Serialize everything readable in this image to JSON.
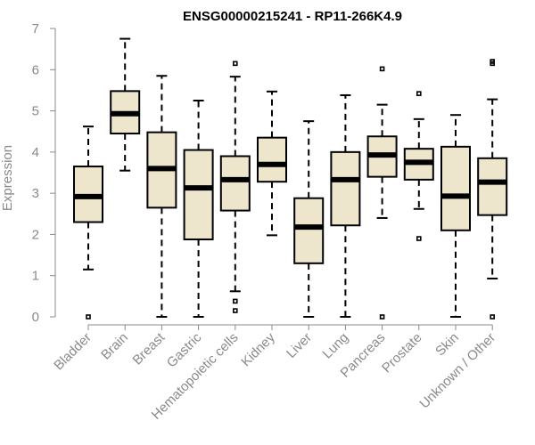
{
  "chart_data": {
    "type": "boxplot",
    "title": "ENSG00000215241 - RP11-266K4.9",
    "ylabel": "Expression",
    "xlabel": "",
    "ylim": [
      0,
      7
    ],
    "yticks": [
      0,
      1,
      2,
      3,
      4,
      5,
      6,
      7
    ],
    "box_fill": "#ede6cd",
    "categories": [
      "Bladder",
      "Brain",
      "Breast",
      "Gastric",
      "Hematopoietic cells",
      "Kidney",
      "Liver",
      "Lung",
      "Pancreas",
      "Prostate",
      "Skin",
      "Unknown / Other"
    ],
    "boxes": [
      {
        "name": "Bladder",
        "whisker_low": 1.15,
        "q1": 2.3,
        "median": 2.92,
        "q3": 3.65,
        "whisker_high": 4.62,
        "outliers": [
          0.0
        ]
      },
      {
        "name": "Brain",
        "whisker_low": 3.55,
        "q1": 4.45,
        "median": 4.93,
        "q3": 5.48,
        "whisker_high": 6.75,
        "outliers": []
      },
      {
        "name": "Breast",
        "whisker_low": 0.0,
        "q1": 2.65,
        "median": 3.6,
        "q3": 4.48,
        "whisker_high": 5.85,
        "outliers": []
      },
      {
        "name": "Gastric",
        "whisker_low": 0.0,
        "q1": 1.88,
        "median": 3.13,
        "q3": 4.05,
        "whisker_high": 5.25,
        "outliers": []
      },
      {
        "name": "Hematopoietic cells",
        "whisker_low": 0.62,
        "q1": 2.58,
        "median": 3.33,
        "q3": 3.9,
        "whisker_high": 5.83,
        "outliers": [
          0.15,
          0.38,
          6.15
        ]
      },
      {
        "name": "Kidney",
        "whisker_low": 1.98,
        "q1": 3.28,
        "median": 3.7,
        "q3": 4.35,
        "whisker_high": 5.47,
        "outliers": []
      },
      {
        "name": "Liver",
        "whisker_low": 0.0,
        "q1": 1.3,
        "median": 2.18,
        "q3": 2.88,
        "whisker_high": 4.75,
        "outliers": []
      },
      {
        "name": "Lung",
        "whisker_low": 0.0,
        "q1": 2.22,
        "median": 3.33,
        "q3": 4.0,
        "whisker_high": 5.38,
        "outliers": []
      },
      {
        "name": "Pancreas",
        "whisker_low": 2.4,
        "q1": 3.4,
        "median": 3.93,
        "q3": 4.38,
        "whisker_high": 5.15,
        "outliers": [
          0.0,
          6.02
        ]
      },
      {
        "name": "Prostate",
        "whisker_low": 2.62,
        "q1": 3.33,
        "median": 3.75,
        "q3": 4.08,
        "whisker_high": 4.8,
        "outliers": [
          1.9,
          5.42
        ]
      },
      {
        "name": "Skin",
        "whisker_low": 0.0,
        "q1": 2.1,
        "median": 2.93,
        "q3": 4.13,
        "whisker_high": 4.9,
        "outliers": []
      },
      {
        "name": "Unknown / Other",
        "whisker_low": 0.93,
        "q1": 2.47,
        "median": 3.27,
        "q3": 3.85,
        "whisker_high": 5.28,
        "outliers": [
          0.0,
          6.15,
          6.2
        ]
      }
    ]
  }
}
